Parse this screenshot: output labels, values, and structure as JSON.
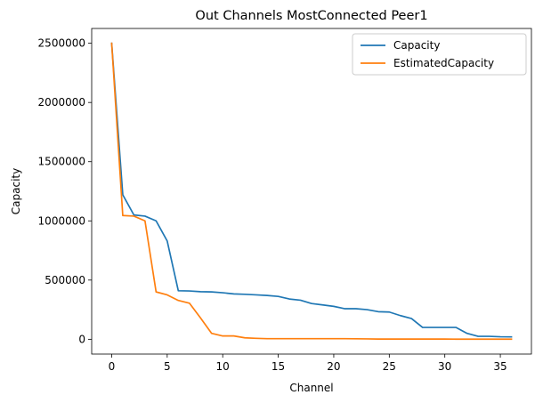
{
  "chart_data": {
    "type": "line",
    "title": "Out Channels MostConnected Peer1",
    "xlabel": "Channel",
    "ylabel": "Capacity",
    "xlim": [
      -1.8,
      37.8
    ],
    "ylim": [
      -125000,
      2625000
    ],
    "xticks": [
      0,
      5,
      10,
      15,
      20,
      25,
      30,
      35
    ],
    "xtick_labels": [
      "0",
      "5",
      "10",
      "15",
      "20",
      "25",
      "30",
      "35"
    ],
    "yticks": [
      0,
      500000,
      1000000,
      1500000,
      2000000,
      2500000
    ],
    "ytick_labels": [
      "0",
      "500000",
      "1000000",
      "1500000",
      "2000000",
      "2500000"
    ],
    "grid": false,
    "legend_position": "upper-right",
    "x": [
      0,
      1,
      2,
      3,
      4,
      5,
      6,
      7,
      8,
      9,
      10,
      11,
      12,
      13,
      14,
      15,
      16,
      17,
      18,
      19,
      20,
      21,
      22,
      23,
      24,
      25,
      26,
      27,
      28,
      29,
      30,
      31,
      32,
      33,
      34,
      35,
      36
    ],
    "series": [
      {
        "name": "Capacity",
        "color": "#1f77b4",
        "values": [
          2500000,
          1220000,
          1050000,
          1040000,
          1000000,
          830000,
          410000,
          408000,
          402000,
          400000,
          393000,
          383000,
          380000,
          375000,
          370000,
          362000,
          340000,
          330000,
          302000,
          290000,
          278000,
          258000,
          258000,
          250000,
          233000,
          230000,
          200000,
          175000,
          100000,
          100000,
          100000,
          100000,
          50000,
          25000,
          25000,
          21000,
          20000
        ]
      },
      {
        "name": "EstimatedCapacity",
        "color": "#ff7f0e",
        "values": [
          2500000,
          1045000,
          1040000,
          1000000,
          400000,
          375000,
          328000,
          305000,
          180000,
          50000,
          28000,
          28000,
          12000,
          8000,
          5000,
          5000,
          5000,
          5000,
          5000,
          5000,
          5000,
          5000,
          4000,
          3000,
          2000,
          2000,
          2000,
          2000,
          2000,
          2000,
          2000,
          1000,
          1000,
          1000,
          1000,
          1000,
          1000
        ]
      }
    ]
  }
}
